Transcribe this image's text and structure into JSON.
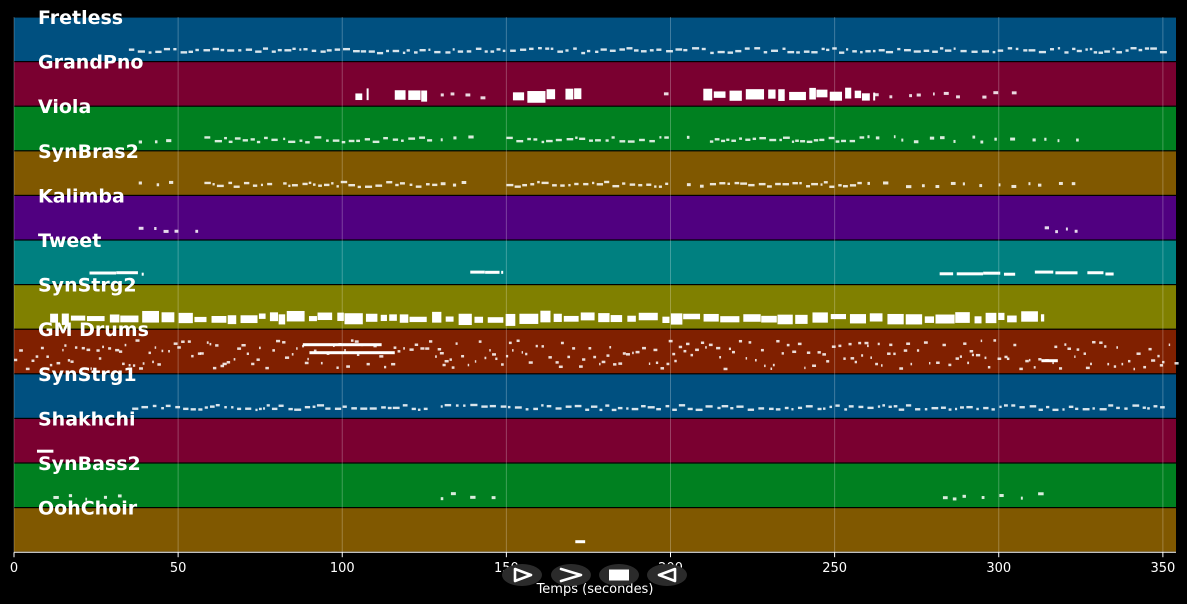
{
  "chart_data": {
    "type": "piano-roll",
    "title": "",
    "xlabel": "Temps (secondes)",
    "ylabel": "",
    "xlim": [
      0,
      354
    ],
    "x_ticks": [
      0,
      50,
      100,
      150,
      200,
      250,
      300,
      350
    ],
    "grid": "vertical",
    "tracks": [
      {
        "name": "Fretless",
        "color": "#005080",
        "notes": [
          [
            35,
            350,
            "dense"
          ]
        ]
      },
      {
        "name": "GrandPno",
        "color": "#7a0030",
        "notes": [
          [
            104,
            108,
            "block"
          ],
          [
            116,
            126,
            "block"
          ],
          [
            130,
            145,
            "sparse"
          ],
          [
            152,
            165,
            "block"
          ],
          [
            168,
            173,
            "block"
          ],
          [
            198,
            202,
            "sparse"
          ],
          [
            210,
            262,
            "block"
          ],
          [
            262,
            275,
            "sparse"
          ],
          [
            275,
            290,
            "sparse"
          ],
          [
            295,
            308,
            "sparse"
          ]
        ]
      },
      {
        "name": "Viola",
        "color": "#008020",
        "notes": [
          [
            38,
            52,
            "sparse"
          ],
          [
            58,
            80,
            "dense"
          ],
          [
            82,
            128,
            "dense"
          ],
          [
            130,
            140,
            "sparse"
          ],
          [
            150,
            200,
            "dense"
          ],
          [
            205,
            210,
            "sparse"
          ],
          [
            212,
            258,
            "dense"
          ],
          [
            260,
            325,
            "sparse"
          ]
        ]
      },
      {
        "name": "SynBras2",
        "color": "#805800",
        "notes": [
          [
            38,
            52,
            "sparse"
          ],
          [
            58,
            80,
            "dense"
          ],
          [
            82,
            128,
            "dense"
          ],
          [
            130,
            140,
            "sparse"
          ],
          [
            150,
            200,
            "dense"
          ],
          [
            205,
            210,
            "sparse"
          ],
          [
            212,
            258,
            "dense"
          ],
          [
            260,
            325,
            "sparse"
          ]
        ]
      },
      {
        "name": "Kalimba",
        "color": "#500080",
        "notes": [
          [
            38,
            58,
            "sparse"
          ],
          [
            314,
            324,
            "sparse"
          ]
        ]
      },
      {
        "name": "Tweet",
        "color": "#008080",
        "notes": [
          [
            23,
            39,
            "long"
          ],
          [
            139,
            149,
            "long"
          ],
          [
            282,
            305,
            "long"
          ],
          [
            311,
            324,
            "long"
          ],
          [
            327,
            335,
            "long"
          ]
        ]
      },
      {
        "name": "SynStrg2",
        "color": "#808000",
        "notes": [
          [
            11,
            314,
            "block"
          ]
        ]
      },
      {
        "name": "GM Drums",
        "color": "#802000",
        "notes": [
          [
            0,
            354,
            "drums"
          ]
        ]
      },
      {
        "name": "SynStrg1",
        "color": "#005080",
        "notes": [
          [
            36,
            125,
            "dense"
          ],
          [
            130,
            350,
            "dense"
          ]
        ]
      },
      {
        "name": "Shakhchi",
        "color": "#7a0030",
        "notes": [
          [
            7,
            12,
            "long"
          ]
        ]
      },
      {
        "name": "SynBass2",
        "color": "#008020",
        "notes": [
          [
            12,
            35,
            "sparse"
          ],
          [
            130,
            148,
            "sparse"
          ],
          [
            283,
            314,
            "sparse"
          ]
        ]
      },
      {
        "name": "OohChoir",
        "color": "#805800",
        "notes": [
          [
            171,
            174,
            "long"
          ]
        ]
      }
    ]
  },
  "controls": [
    {
      "name": "play-button",
      "icon": "play-icon"
    },
    {
      "name": "fast-forward-button",
      "icon": "fast-forward-icon"
    },
    {
      "name": "stop-button",
      "icon": "stop-icon"
    },
    {
      "name": "rewind-button",
      "icon": "rewind-icon"
    }
  ]
}
